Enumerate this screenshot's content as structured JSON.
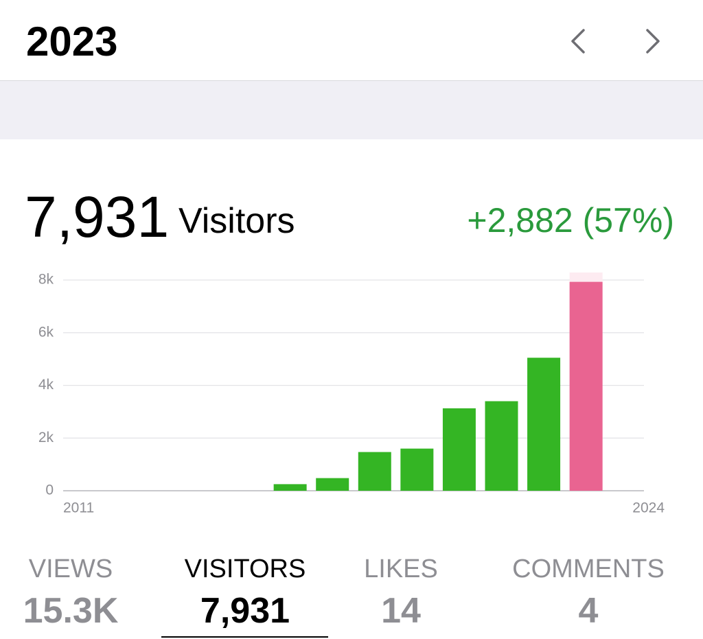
{
  "header": {
    "title": "2023"
  },
  "summary": {
    "count": "7,931",
    "label": "Visitors",
    "change": "+2,882 (57%)"
  },
  "chart_data": {
    "type": "bar",
    "categories": [
      "2011",
      null,
      null,
      null,
      null,
      null,
      null,
      null,
      null,
      null,
      null,
      null,
      null,
      "2024"
    ],
    "values": [
      null,
      null,
      null,
      null,
      null,
      250,
      480,
      1470,
      1600,
      3130,
      3400,
      5050,
      7931,
      null
    ],
    "colors": [
      null,
      null,
      null,
      null,
      null,
      "#34b524",
      "#34b524",
      "#34b524",
      "#34b524",
      "#34b524",
      "#34b524",
      "#34b524",
      "#e96491",
      null
    ],
    "ylim": [
      0,
      8000
    ],
    "yticks": [
      0,
      {
        "value": 2000,
        "label": "2k"
      },
      {
        "value": 4000,
        "label": "4k"
      },
      {
        "value": 6000,
        "label": "6k"
      },
      {
        "value": 8000,
        "label": "8k"
      }
    ],
    "grid": true
  },
  "stats": [
    {
      "label": "VIEWS",
      "value": "15.3K"
    },
    {
      "label": "VISITORS",
      "value": "7,931"
    },
    {
      "label": "LIKES",
      "value": "14"
    },
    {
      "label": "COMMENTS",
      "value": "4"
    }
  ]
}
